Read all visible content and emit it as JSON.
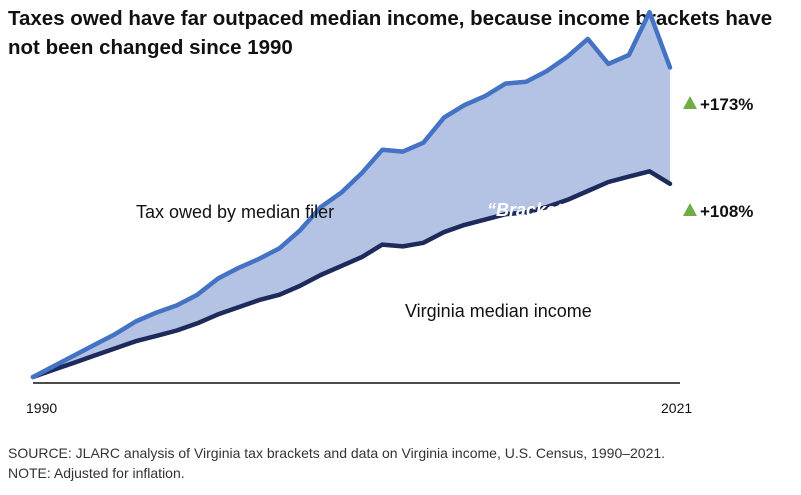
{
  "title": "Taxes owed have far outpaced median income, because income brackets have not been changed since 1990",
  "source_line": "SOURCE: JLARC analysis of Virginia tax brackets and data on Virginia income, U.S. Census, 1990–2021.",
  "note_line": "NOTE: Adjusted for inflation.",
  "chart_data": {
    "type": "area",
    "x": [
      1990,
      1991,
      1992,
      1993,
      1994,
      1995,
      1996,
      1997,
      1998,
      1999,
      2000,
      2001,
      2002,
      2003,
      2004,
      2005,
      2006,
      2007,
      2008,
      2009,
      2010,
      2011,
      2012,
      2013,
      2014,
      2015,
      2016,
      2017,
      2018,
      2019,
      2020,
      2021
    ],
    "xlim": [
      1990,
      2021
    ],
    "ylim": [
      0,
      180
    ],
    "x_tick_labels": [
      "1990",
      "2021"
    ],
    "series": [
      {
        "name": "Tax owed by median filer",
        "color": "#4472c4",
        "values": [
          0,
          6,
          12,
          18,
          24,
          31,
          36,
          40,
          46,
          55,
          61,
          66,
          72,
          82,
          95,
          103,
          114,
          127,
          126,
          131,
          145,
          152,
          157,
          164,
          165,
          171,
          179,
          189,
          175,
          180,
          204,
          173
        ]
      },
      {
        "name": "Virginia median income",
        "color": "#1f2a5c",
        "values": [
          0,
          4,
          8,
          12,
          16,
          20,
          23,
          26,
          30,
          35,
          39,
          43,
          46,
          51,
          57,
          62,
          67,
          74,
          73,
          75,
          81,
          85,
          88,
          91,
          92,
          95,
          99,
          104,
          109,
          112,
          115,
          108
        ]
      }
    ],
    "band_label": "“Bracket creep”",
    "band_color": "#b4c3e4",
    "annotations": [
      {
        "text": "+173%",
        "marker": "triangle-up",
        "color": "#70ad47"
      },
      {
        "text": "+108%",
        "marker": "triangle-up",
        "color": "#70ad47"
      }
    ],
    "grid": false,
    "legend": "inline labels"
  }
}
